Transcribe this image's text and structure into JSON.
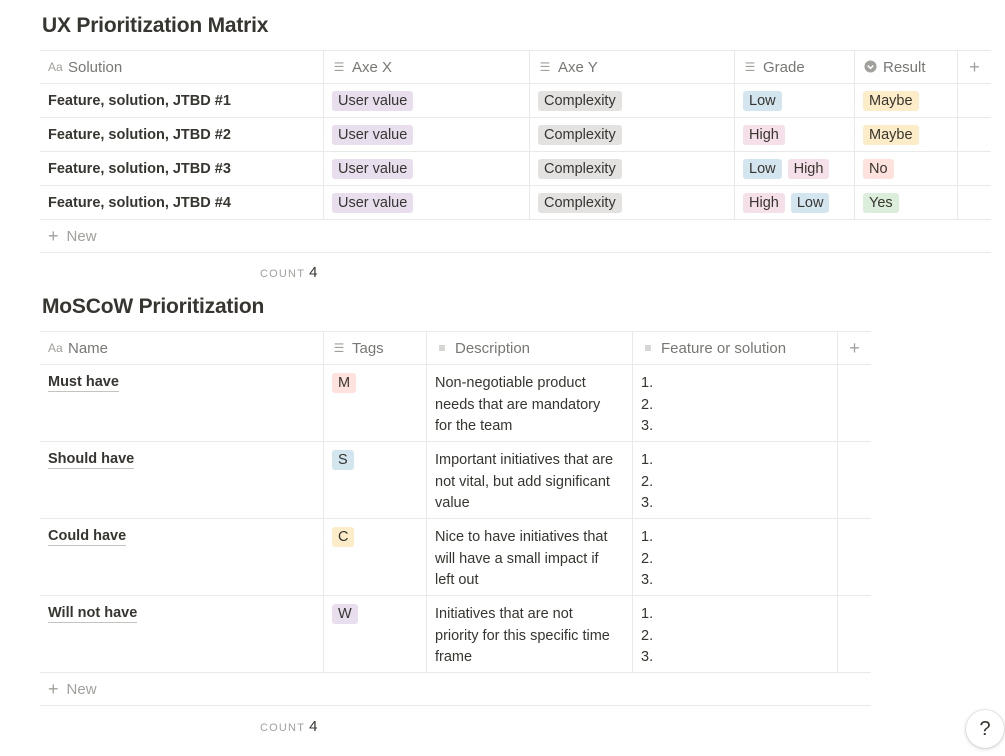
{
  "matrix": {
    "title": "UX Prioritization Matrix",
    "headers": {
      "solution": "Solution",
      "axe_x": "Axe X",
      "axe_y": "Axe Y",
      "grade": "Grade",
      "result": "Result",
      "add": "+"
    },
    "rows": [
      {
        "solution": "Feature, solution, JTBD #1",
        "axe_x": "User value",
        "axe_y": "Complexity",
        "grade": [
          "Low"
        ],
        "result": "Maybe"
      },
      {
        "solution": "Feature, solution, JTBD #2",
        "axe_x": "User value",
        "axe_y": "Complexity",
        "grade": [
          "High"
        ],
        "result": "Maybe"
      },
      {
        "solution": "Feature, solution, JTBD #3",
        "axe_x": "User value",
        "axe_y": "Complexity",
        "grade": [
          "Low",
          "High"
        ],
        "result": "No"
      },
      {
        "solution": "Feature, solution, JTBD #4",
        "axe_x": "User value",
        "axe_y": "Complexity",
        "grade": [
          "High",
          "Low"
        ],
        "result": "Yes"
      }
    ],
    "new_label": "New",
    "count_label": "COUNT",
    "count_value": "4"
  },
  "moscow": {
    "title": "MoSCoW Prioritization",
    "headers": {
      "name": "Name",
      "tags": "Tags",
      "description": "Description",
      "feature": "Feature or solution",
      "add": "+"
    },
    "rows": [
      {
        "name": "Must have",
        "tag": "M",
        "description_lines": [
          "Non-negotiable product",
          "needs that are mandatory",
          "for the team"
        ],
        "feature_lines": [
          "1.",
          "2.",
          "3."
        ]
      },
      {
        "name": "Should have",
        "tag": "S",
        "description_lines": [
          "Important initiatives that are",
          "not vital, but add significant",
          "value"
        ],
        "feature_lines": [
          "1.",
          "2.",
          "3."
        ]
      },
      {
        "name": "Could have",
        "tag": "C",
        "description_lines": [
          "Nice to have initiatives that",
          "will have a small impact if",
          "left out"
        ],
        "feature_lines": [
          "1.",
          "2.",
          "3."
        ]
      },
      {
        "name": "Will not have",
        "tag": "W",
        "description_lines": [
          "Initiatives that are not",
          "priority for this specific time",
          "frame"
        ],
        "feature_lines": [
          "1.",
          "2.",
          "3."
        ]
      }
    ],
    "new_label": "New",
    "count_label": "COUNT",
    "count_value": "4"
  },
  "help_label": "?",
  "colors": {
    "purple_bg": "#e8deee",
    "gray_bg": "#e3e2e0",
    "blue_bg": "#d3e5ef",
    "pink_bg": "#f5e0e9",
    "yellow_bg": "#fdecc8",
    "red_bg": "#ffe2dd",
    "green_bg": "#dbeddb"
  }
}
